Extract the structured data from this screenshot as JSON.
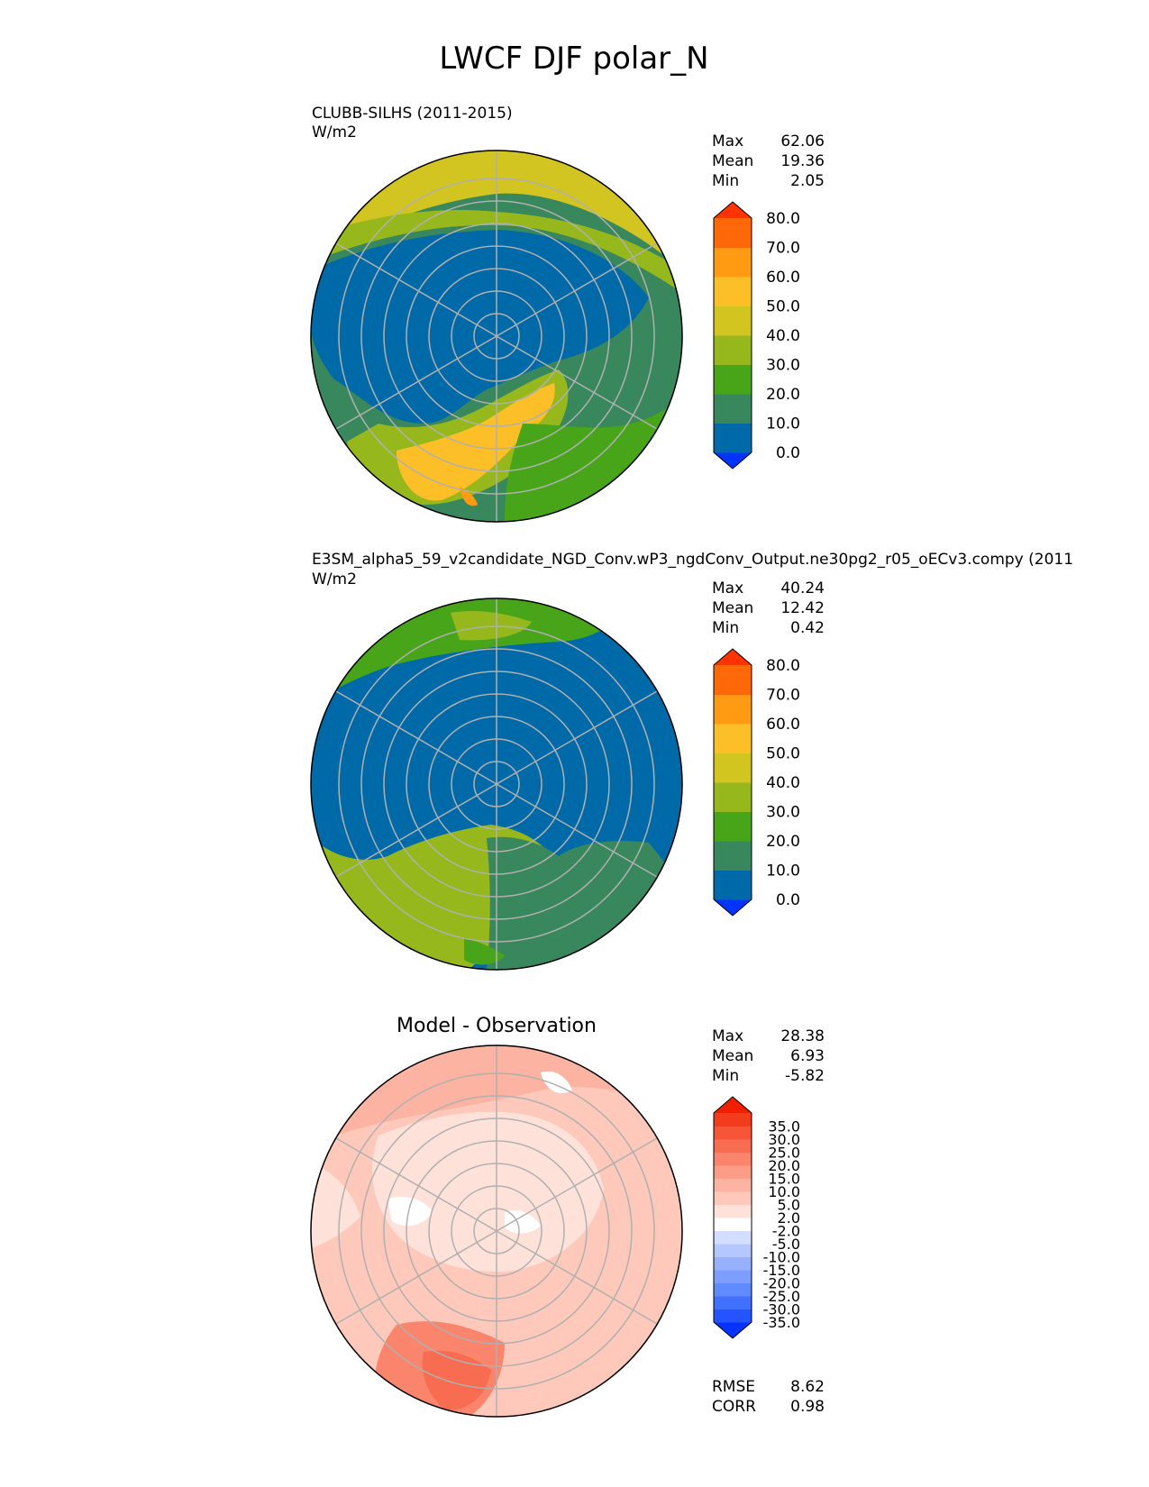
{
  "title": "LWCF DJF polar_N",
  "colors": {
    "ref_levels": [
      "#0033ff",
      "#006aa8",
      "#39875d",
      "#48a51a",
      "#97b81c",
      "#d2c521",
      "#fcbf27",
      "#ff9b12",
      "#ff6808",
      "#ff3200"
    ],
    "diff_levels": [
      "#0533ff",
      "#2454ff",
      "#4170ff",
      "#5f8bff",
      "#7d9eff",
      "#98b1ff",
      "#b5c7ff",
      "#d3ddff",
      "#ffffff",
      "#fee2da",
      "#fec8ba",
      "#fdb3a2",
      "#fb9c86",
      "#fa856c",
      "#f86c52",
      "#f65538",
      "#f33c1e",
      "#f01f00"
    ],
    "grid": "#b0b0b0"
  },
  "chart_data": [
    {
      "type": "heatmap",
      "projection": "north-polar-stereographic",
      "title": "",
      "subtitle": "CLUBB-SILHS (2011-2015)",
      "units": "W/m2",
      "stats": {
        "labels": [
          "Max",
          "Mean",
          "Min"
        ],
        "values": [
          "62.06",
          "19.36",
          "2.05"
        ]
      },
      "colorbar": {
        "ticks": [
          "0.0",
          "10.0",
          "20.0",
          "30.0",
          "40.0",
          "50.0",
          "60.0",
          "70.0",
          "80.0"
        ],
        "extend": "both"
      }
    },
    {
      "type": "heatmap",
      "projection": "north-polar-stereographic",
      "title": "",
      "subtitle": "E3SM_alpha5_59_v2candidate_NGD_Conv.wP3_ngdConv_Output.ne30pg2_r05_oECv3.compy (2011",
      "units": "W/m2",
      "stats": {
        "labels": [
          "Max",
          "Mean",
          "Min"
        ],
        "values": [
          "40.24",
          "12.42",
          "0.42"
        ]
      },
      "colorbar": {
        "ticks": [
          "0.0",
          "10.0",
          "20.0",
          "30.0",
          "40.0",
          "50.0",
          "60.0",
          "70.0",
          "80.0"
        ],
        "extend": "both"
      }
    },
    {
      "type": "heatmap",
      "projection": "north-polar-stereographic",
      "title": "Model - Observation",
      "subtitle": "",
      "units": "",
      "stats": {
        "labels": [
          "Max",
          "Mean",
          "Min"
        ],
        "values": [
          "28.38",
          "6.93",
          "-5.82"
        ]
      },
      "colorbar": {
        "ticks": [
          "-35.0",
          "-30.0",
          "-25.0",
          "-20.0",
          "-15.0",
          "-10.0",
          "-5.0",
          "-2.0",
          "2.0",
          "5.0",
          "10.0",
          "15.0",
          "20.0",
          "25.0",
          "30.0",
          "35.0"
        ],
        "extend": "both"
      },
      "metrics": {
        "labels": [
          "RMSE",
          "CORR"
        ],
        "values": [
          "8.62",
          "0.98"
        ]
      }
    }
  ]
}
